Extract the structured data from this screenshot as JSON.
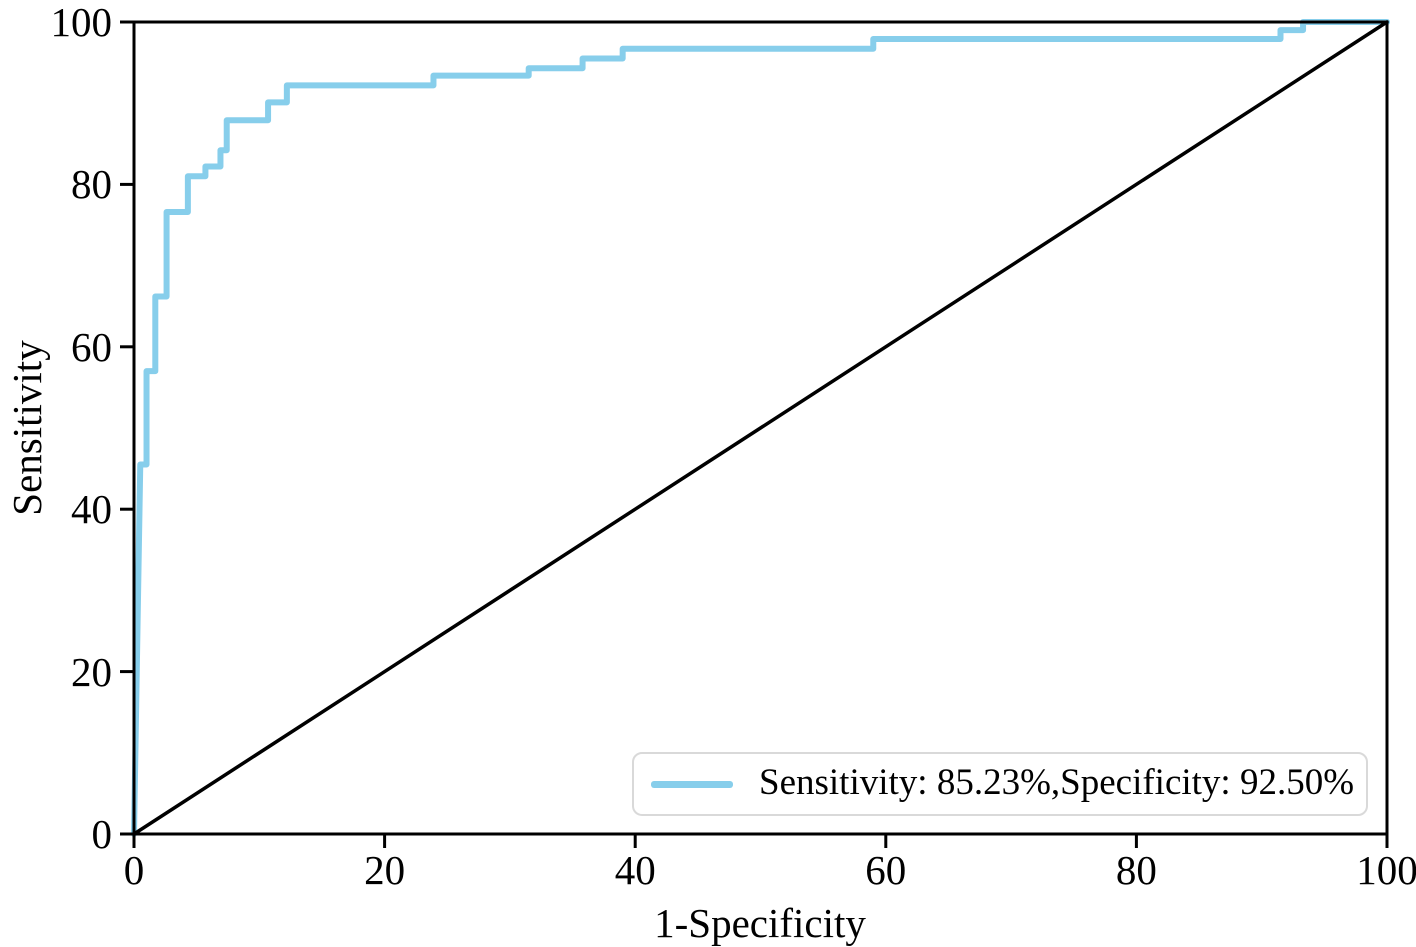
{
  "chart_data": {
    "type": "line",
    "subtype": "roc-curve",
    "title": "",
    "xlabel": "1-Specificity",
    "ylabel": "Sensitivity",
    "xlim": [
      0,
      100
    ],
    "ylim": [
      0,
      100
    ],
    "xticks": [
      0,
      20,
      40,
      60,
      80,
      100
    ],
    "yticks": [
      0,
      20,
      40,
      60,
      80,
      100
    ],
    "grid": false,
    "legend_position": "lower right",
    "series": [
      {
        "name": "Sensitivity: 85.23%,Specificity: 92.50%",
        "color": "#87CEEB",
        "stroke_width": 6,
        "points": [
          [
            0,
            0
          ],
          [
            0.5,
            45.5
          ],
          [
            1.0,
            45.5
          ],
          [
            1.0,
            57.0
          ],
          [
            1.7,
            57.0
          ],
          [
            1.7,
            66.2
          ],
          [
            2.6,
            66.2
          ],
          [
            2.6,
            76.6
          ],
          [
            4.3,
            76.6
          ],
          [
            4.3,
            81.0
          ],
          [
            5.7,
            81.0
          ],
          [
            5.7,
            82.2
          ],
          [
            6.9,
            82.2
          ],
          [
            6.9,
            84.2
          ],
          [
            7.4,
            84.2
          ],
          [
            7.4,
            87.9
          ],
          [
            10.7,
            87.9
          ],
          [
            10.7,
            90.1
          ],
          [
            12.2,
            90.1
          ],
          [
            12.2,
            92.2
          ],
          [
            23.9,
            92.2
          ],
          [
            23.9,
            93.4
          ],
          [
            31.5,
            93.4
          ],
          [
            31.5,
            94.3
          ],
          [
            35.8,
            94.3
          ],
          [
            35.8,
            95.5
          ],
          [
            39.0,
            95.5
          ],
          [
            39.0,
            96.7
          ],
          [
            59.0,
            96.7
          ],
          [
            59.0,
            97.9
          ],
          [
            91.5,
            97.9
          ],
          [
            91.5,
            99.0
          ],
          [
            93.3,
            99.0
          ],
          [
            93.3,
            100
          ],
          [
            100,
            100
          ]
        ]
      },
      {
        "name": "chance-diagonal",
        "color": "#000000",
        "stroke_width": 3.5,
        "points": [
          [
            0,
            0
          ],
          [
            100,
            100
          ]
        ]
      }
    ]
  },
  "legend": {
    "label": "Sensitivity: 85.23%,Specificity: 92.50%"
  },
  "colors": {
    "curve": "#87CEEB",
    "axis": "#000000",
    "background": "#ffffff",
    "legend_border": "#d9d9d9"
  }
}
